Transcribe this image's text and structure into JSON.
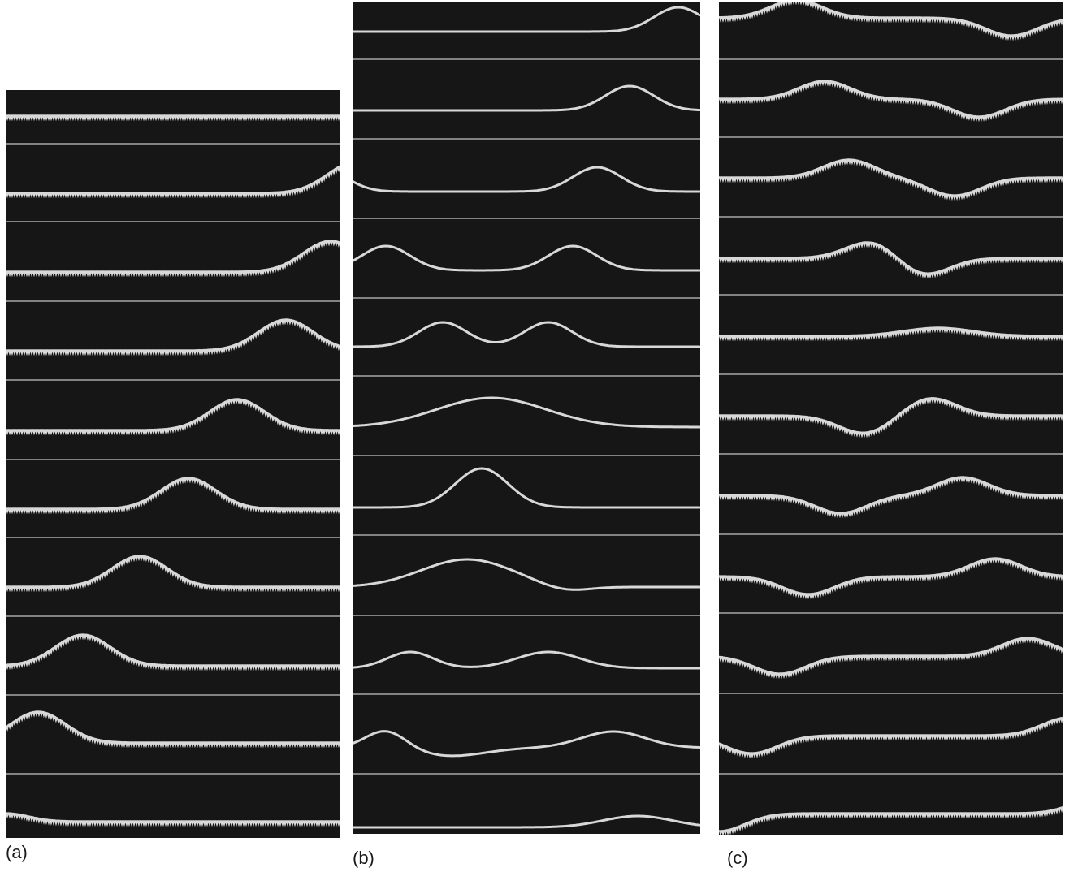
{
  "figure": {
    "panels": [
      {
        "id": "a",
        "label": "(a)"
      },
      {
        "id": "b",
        "label": "(b)"
      },
      {
        "id": "c",
        "label": "(c)"
      }
    ]
  },
  "colors": {
    "background": "#161616",
    "wave": "#d8d8d8",
    "divider": "#a8a8a8",
    "page": "#ffffff"
  }
}
